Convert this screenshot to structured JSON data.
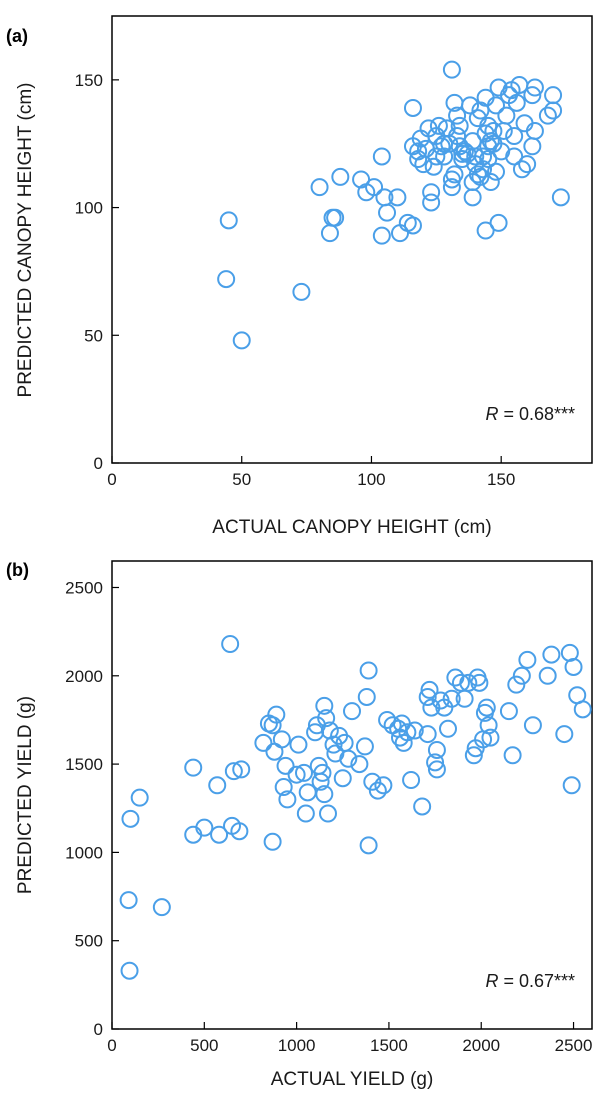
{
  "chart_data": [
    {
      "type": "scatter",
      "panel_label": "(a)",
      "xlabel": "ACTUAL CANOPY HEIGHT (cm)",
      "ylabel": "PREDICTED CANOPY HEIGHT (cm)",
      "xlim": [
        0,
        185
      ],
      "ylim": [
        0,
        175
      ],
      "xticks": [
        0,
        50,
        100,
        150
      ],
      "yticks": [
        0,
        50,
        100,
        150
      ],
      "annotation": {
        "var": "R",
        "text": " = 0.68***"
      },
      "marker_color": "#4a9fe8",
      "points": [
        [
          45,
          95
        ],
        [
          44,
          72
        ],
        [
          50,
          48
        ],
        [
          73,
          67
        ],
        [
          80,
          108
        ],
        [
          84,
          90
        ],
        [
          86,
          96
        ],
        [
          85,
          96
        ],
        [
          88,
          112
        ],
        [
          96,
          111
        ],
        [
          98,
          106
        ],
        [
          101,
          108
        ],
        [
          104,
          89
        ],
        [
          104,
          120
        ],
        [
          105,
          104
        ],
        [
          106,
          98
        ],
        [
          110,
          104
        ],
        [
          111,
          90
        ],
        [
          114,
          94
        ],
        [
          116,
          93
        ],
        [
          116,
          124
        ],
        [
          116,
          139
        ],
        [
          118,
          119
        ],
        [
          118,
          122
        ],
        [
          119,
          127
        ],
        [
          120,
          117
        ],
        [
          121,
          123
        ],
        [
          122,
          131
        ],
        [
          123,
          102
        ],
        [
          123,
          106
        ],
        [
          124,
          116
        ],
        [
          125,
          120
        ],
        [
          125,
          128
        ],
        [
          126,
          132
        ],
        [
          127,
          124
        ],
        [
          128,
          120
        ],
        [
          128,
          125
        ],
        [
          129,
          131
        ],
        [
          130,
          125
        ],
        [
          131,
          154
        ],
        [
          131,
          111
        ],
        [
          131,
          108
        ],
        [
          132,
          113
        ],
        [
          132,
          141
        ],
        [
          133,
          136
        ],
        [
          133,
          128
        ],
        [
          134,
          132
        ],
        [
          134,
          124
        ],
        [
          135,
          121
        ],
        [
          135,
          119
        ],
        [
          136,
          122
        ],
        [
          137,
          121
        ],
        [
          138,
          140
        ],
        [
          139,
          104
        ],
        [
          139,
          110
        ],
        [
          139,
          126
        ],
        [
          140,
          120
        ],
        [
          140,
          117
        ],
        [
          141,
          113
        ],
        [
          141,
          135
        ],
        [
          142,
          138
        ],
        [
          142,
          112
        ],
        [
          143,
          115
        ],
        [
          143,
          120
        ],
        [
          144,
          91
        ],
        [
          144,
          143
        ],
        [
          144,
          129
        ],
        [
          145,
          132
        ],
        [
          145,
          119
        ],
        [
          145,
          124
        ],
        [
          146,
          110
        ],
        [
          146,
          126
        ],
        [
          147,
          125
        ],
        [
          147,
          130
        ],
        [
          148,
          114
        ],
        [
          148,
          140
        ],
        [
          149,
          94
        ],
        [
          149,
          147
        ],
        [
          150,
          122
        ],
        [
          151,
          130
        ],
        [
          152,
          136
        ],
        [
          153,
          144
        ],
        [
          154,
          146
        ],
        [
          155,
          120
        ],
        [
          155,
          128
        ],
        [
          156,
          141
        ],
        [
          157,
          148
        ],
        [
          158,
          115
        ],
        [
          159,
          133
        ],
        [
          160,
          117
        ],
        [
          162,
          124
        ],
        [
          162,
          144
        ],
        [
          163,
          147
        ],
        [
          163,
          130
        ],
        [
          168,
          136
        ],
        [
          170,
          144
        ],
        [
          170,
          138
        ],
        [
          173,
          104
        ]
      ]
    },
    {
      "type": "scatter",
      "panel_label": "(b)",
      "xlabel": "ACTUAL YIELD (g)",
      "ylabel": "PREDICTED YIELD (g)",
      "xlim": [
        0,
        2600
      ],
      "ylim": [
        0,
        2650
      ],
      "xticks": [
        0,
        500,
        1000,
        1500,
        2000,
        2500
      ],
      "yticks": [
        0,
        500,
        1000,
        1500,
        2000,
        2500
      ],
      "annotation": {
        "var": "R",
        "text": " = 0.67***"
      },
      "marker_color": "#4a9fe8",
      "points": [
        [
          90,
          730
        ],
        [
          95,
          330
        ],
        [
          100,
          1190
        ],
        [
          150,
          1310
        ],
        [
          270,
          690
        ],
        [
          440,
          1100
        ],
        [
          440,
          1480
        ],
        [
          500,
          1140
        ],
        [
          570,
          1380
        ],
        [
          580,
          1100
        ],
        [
          640,
          2180
        ],
        [
          650,
          1150
        ],
        [
          660,
          1460
        ],
        [
          690,
          1120
        ],
        [
          700,
          1470
        ],
        [
          820,
          1620
        ],
        [
          850,
          1730
        ],
        [
          870,
          1720
        ],
        [
          870,
          1060
        ],
        [
          880,
          1570
        ],
        [
          890,
          1780
        ],
        [
          920,
          1640
        ],
        [
          930,
          1370
        ],
        [
          940,
          1490
        ],
        [
          950,
          1300
        ],
        [
          1000,
          1440
        ],
        [
          1010,
          1610
        ],
        [
          1040,
          1450
        ],
        [
          1050,
          1220
        ],
        [
          1060,
          1340
        ],
        [
          1100,
          1680
        ],
        [
          1110,
          1720
        ],
        [
          1120,
          1490
        ],
        [
          1130,
          1400
        ],
        [
          1140,
          1450
        ],
        [
          1150,
          1330
        ],
        [
          1150,
          1830
        ],
        [
          1160,
          1760
        ],
        [
          1170,
          1220
        ],
        [
          1180,
          1690
        ],
        [
          1200,
          1610
        ],
        [
          1210,
          1560
        ],
        [
          1230,
          1660
        ],
        [
          1250,
          1420
        ],
        [
          1260,
          1620
        ],
        [
          1280,
          1530
        ],
        [
          1300,
          1800
        ],
        [
          1340,
          1500
        ],
        [
          1370,
          1600
        ],
        [
          1380,
          1880
        ],
        [
          1390,
          1040
        ],
        [
          1390,
          2030
        ],
        [
          1410,
          1400
        ],
        [
          1440,
          1350
        ],
        [
          1470,
          1380
        ],
        [
          1490,
          1750
        ],
        [
          1520,
          1720
        ],
        [
          1550,
          1700
        ],
        [
          1560,
          1650
        ],
        [
          1570,
          1730
        ],
        [
          1580,
          1620
        ],
        [
          1600,
          1680
        ],
        [
          1620,
          1410
        ],
        [
          1640,
          1690
        ],
        [
          1680,
          1260
        ],
        [
          1710,
          1670
        ],
        [
          1710,
          1880
        ],
        [
          1720,
          1920
        ],
        [
          1730,
          1820
        ],
        [
          1750,
          1510
        ],
        [
          1760,
          1580
        ],
        [
          1760,
          1470
        ],
        [
          1780,
          1860
        ],
        [
          1800,
          1820
        ],
        [
          1820,
          1700
        ],
        [
          1840,
          1870
        ],
        [
          1860,
          1990
        ],
        [
          1890,
          1960
        ],
        [
          1910,
          1870
        ],
        [
          1930,
          1960
        ],
        [
          1960,
          1550
        ],
        [
          1970,
          1590
        ],
        [
          1980,
          1990
        ],
        [
          1990,
          1960
        ],
        [
          2010,
          1640
        ],
        [
          2020,
          1790
        ],
        [
          2030,
          1820
        ],
        [
          2040,
          1720
        ],
        [
          2050,
          1650
        ],
        [
          2150,
          1800
        ],
        [
          2170,
          1550
        ],
        [
          2190,
          1950
        ],
        [
          2220,
          2000
        ],
        [
          2250,
          2090
        ],
        [
          2280,
          1720
        ],
        [
          2360,
          2000
        ],
        [
          2380,
          2120
        ],
        [
          2450,
          1670
        ],
        [
          2480,
          2130
        ],
        [
          2490,
          1380
        ],
        [
          2500,
          2050
        ],
        [
          2520,
          1890
        ],
        [
          2550,
          1810
        ]
      ]
    }
  ]
}
